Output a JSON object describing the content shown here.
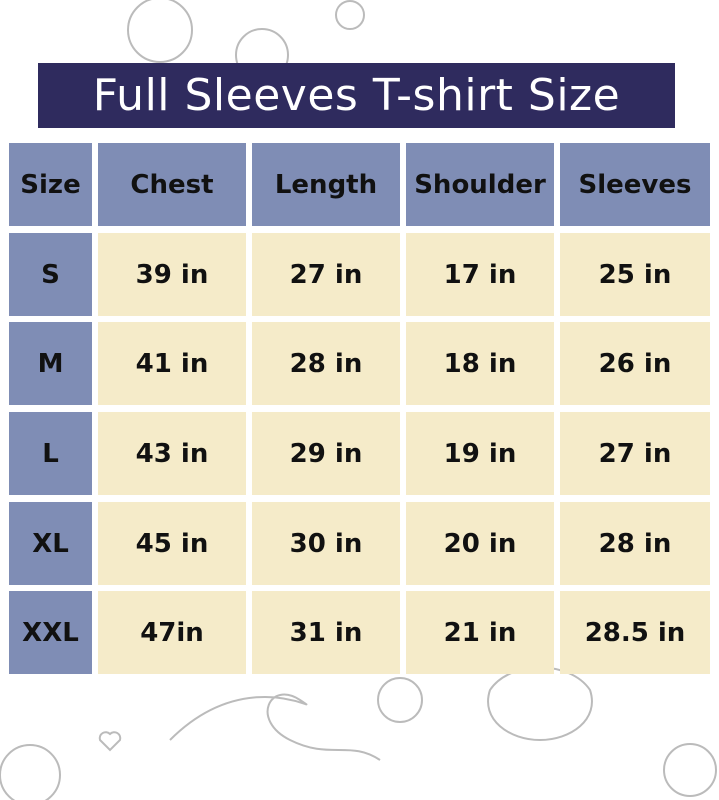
{
  "title": "Full Sleeves T-shirt Size",
  "colors": {
    "title_bg": "#2f2b5e",
    "header_bg": "#7f8db5",
    "cell_bg": "#f5ebc9"
  },
  "table": {
    "headers": [
      "Size",
      "Chest",
      "Length",
      "Shoulder",
      "Sleeves"
    ],
    "rows": [
      [
        "S",
        "39 in",
        "27 in",
        "17 in",
        "25 in"
      ],
      [
        "M",
        "41 in",
        "28 in",
        "18 in",
        "26 in"
      ],
      [
        "L",
        "43 in",
        "29 in",
        "19 in",
        "27 in"
      ],
      [
        "XL",
        "45 in",
        "30 in",
        "20 in",
        "28 in"
      ],
      [
        "XXL",
        "47in",
        "31 in",
        "21 in",
        "28.5 in"
      ]
    ]
  }
}
